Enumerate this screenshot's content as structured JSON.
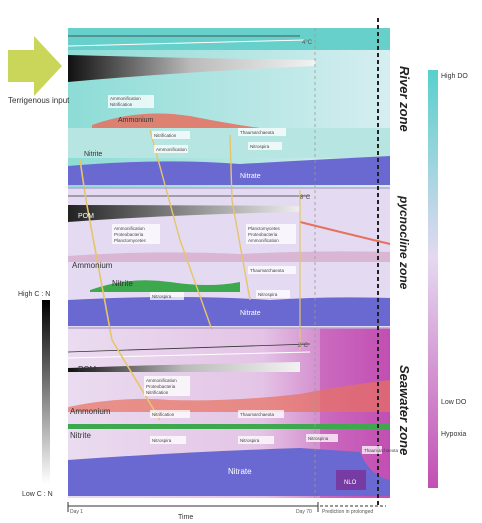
{
  "terrigenous": "Terrigenous input",
  "zones": [
    "River zone",
    "pycnocline zone",
    "Seawater zone"
  ],
  "species": {
    "ammonium": "Ammonium",
    "nitrite": "Nitrite",
    "nitrate": "Nitrate",
    "pom": "POM"
  },
  "temp_labels": [
    "4°C",
    "8°C",
    "2°C"
  ],
  "process_labels": {
    "river": [
      "Ammonification",
      "Nitrification",
      "Thaumarchaeota",
      "Nitrospira"
    ],
    "pycnocline": [
      "Ammonification",
      "Proteobacteria",
      "Planctomycetes",
      "Thaumarchaeota",
      "Nitrospira"
    ],
    "seawater": [
      "Ammonification",
      "Proteobacteria",
      "Nitrification",
      "Thaumarchaeota",
      "Nitrospira",
      "Nitrospina"
    ]
  },
  "seawater_extra": "NLO",
  "left_scale": {
    "top": "High C : N",
    "bottom": "Low C : N"
  },
  "right_scale": {
    "top": "High DO",
    "mid": "Low DO",
    "bottom": "Hypoxia"
  },
  "time_axis": {
    "start": "Day 1",
    "end": "Day 70",
    "label": "Time",
    "prediction": "Prediction in prolonged"
  },
  "colors": {
    "teal": "#5fcfc8",
    "lavender": "#d9c8ec",
    "magenta": "#c65db8",
    "nitrate": "#6a69d2",
    "ammonium": "#e8705e",
    "green": "#3ea84f",
    "arrow": "#c9d65a",
    "connector": "#e6c56a"
  }
}
